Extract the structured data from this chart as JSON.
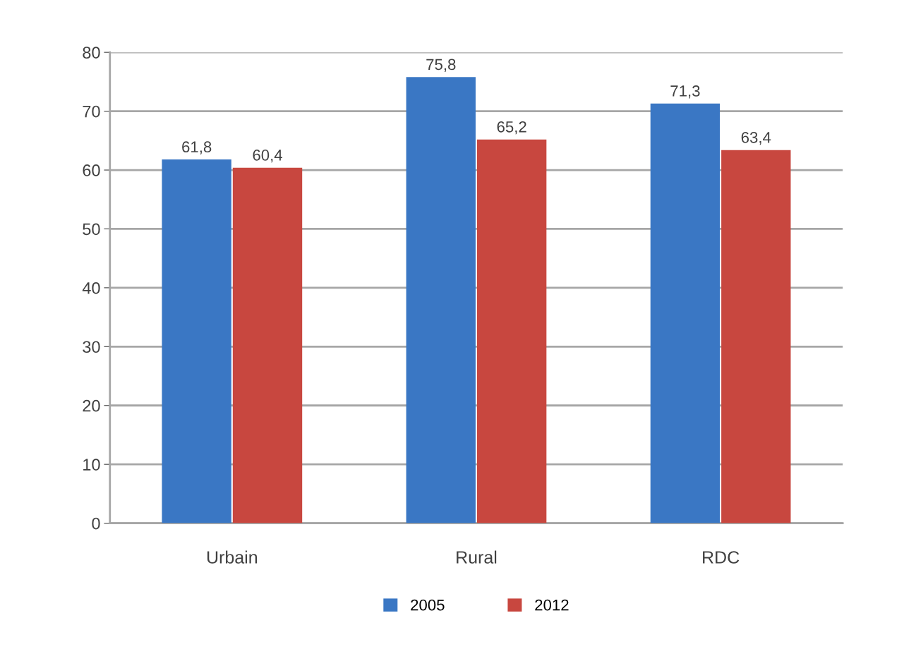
{
  "chart_data": {
    "type": "bar",
    "categories": [
      "Urbain",
      "Rural",
      "RDC"
    ],
    "series": [
      {
        "name": "2005",
        "color": "#3a77c4",
        "values": [
          61.8,
          75.8,
          71.3
        ],
        "value_labels": [
          "61,8",
          "75,8",
          "71,3"
        ]
      },
      {
        "name": "2012",
        "color": "#c8473f",
        "values": [
          60.4,
          65.2,
          63.4
        ],
        "value_labels": [
          "60,4",
          "65,2",
          "63,4"
        ]
      }
    ],
    "ylim": [
      0,
      80
    ],
    "yticks": [
      0,
      10,
      20,
      30,
      40,
      50,
      60,
      70,
      80
    ],
    "grid": "y",
    "legend": "bottom"
  }
}
